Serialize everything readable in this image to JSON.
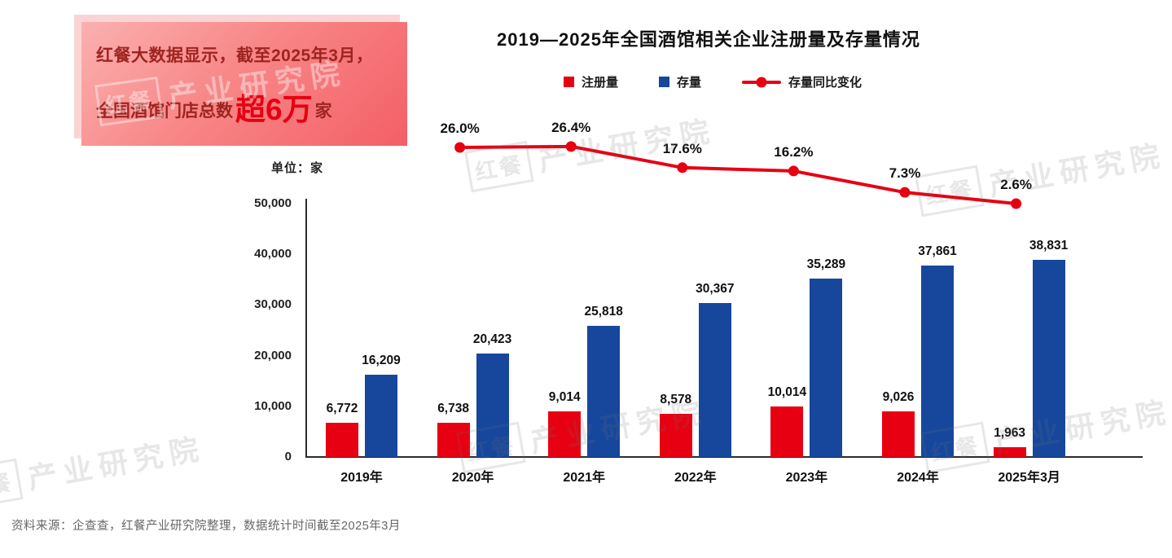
{
  "callout": {
    "line1": "红餐大数据显示，截至2025年3月，",
    "line2_prefix": "全国酒馆门店总数",
    "line2_highlight": "超6万",
    "line2_suffix": "家"
  },
  "header": {
    "title": "2019—2025年全国酒馆相关企业注册量及存量情况"
  },
  "legend": {
    "registrations": "注册量",
    "stock": "存量",
    "yoy": "存量同比变化"
  },
  "axis": {
    "unit_label": "单位：家"
  },
  "chart_data": {
    "type": "bar",
    "title": "2019—2025年全国酒馆相关企业注册量及存量情况",
    "categories": [
      "2019年",
      "2020年",
      "2021年",
      "2022年",
      "2023年",
      "2024年",
      "2025年3月"
    ],
    "series": [
      {
        "name": "注册量",
        "type": "bar",
        "color": "#e60012",
        "values": [
          6772,
          6738,
          9014,
          8578,
          10014,
          9026,
          1963
        ]
      },
      {
        "name": "存量",
        "type": "bar",
        "color": "#16479d",
        "values": [
          16209,
          20423,
          25818,
          30367,
          35289,
          37861,
          38831
        ]
      },
      {
        "name": "存量同比变化",
        "type": "line",
        "color": "#e60012",
        "categories": [
          "2020年",
          "2021年",
          "2022年",
          "2023年",
          "2024年",
          "2025年3月"
        ],
        "values_percent": [
          26.0,
          26.4,
          17.6,
          16.2,
          7.3,
          2.6
        ]
      }
    ],
    "ylabel": "单位：家",
    "ylim": [
      0,
      50000
    ],
    "yticks": [
      0,
      10000,
      20000,
      30000,
      40000,
      50000
    ],
    "ytick_labels": [
      "0",
      "10,000",
      "20,000",
      "30,000",
      "40,000",
      "50,000"
    ],
    "grid": false,
    "legend_position": "top"
  },
  "watermark": {
    "logo": "红餐",
    "text": "产业研究院"
  },
  "footer": {
    "source": "资料来源：企查查，红餐产业研究院整理，数据统计时间截至2025年3月"
  }
}
